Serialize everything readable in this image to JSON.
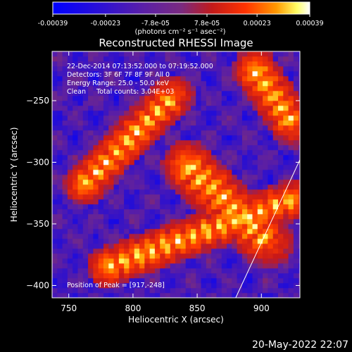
{
  "chart_data": {
    "type": "heatmap",
    "title": "Reconstructed RHESSI Image",
    "xlabel": "Heliocentric X (arcsec)",
    "ylabel": "Heliocentric Y (arcsec)",
    "xlim": [
      737,
      930
    ],
    "ylim": [
      -410,
      -210
    ],
    "x_ticks": [
      750,
      800,
      850,
      900
    ],
    "y_ticks": [
      -250,
      -300,
      -350,
      -400
    ],
    "colorbar": {
      "range": [
        -0.00039,
        0.00039
      ],
      "tick_values": [
        -0.00039,
        -0.00023,
        -7.8e-05,
        7.8e-05,
        0.00023,
        0.00039
      ],
      "tick_labels": [
        "-0.00039",
        "-0.00023",
        "-7.8e-05",
        "7.8e-05",
        "0.00023",
        "0.00039"
      ],
      "unit_label": "(photons cm⁻² s⁻¹ asec⁻²)",
      "colormap": [
        "#0000ff",
        "#3300cc",
        "#661aa0",
        "#8a2e6e",
        "#c81e1e",
        "#ff4000",
        "#ff9900",
        "#ffff66",
        "#ffffff"
      ]
    },
    "annotations": [
      "22-Dec-2014 07:13:52.000 to 07:19:52.000",
      "Detectors: 3F 6F 7F 8F 9F All 0",
      "Energy Range: 25.0 - 50.0 keV",
      "Clean     Total counts: 3.04E+03"
    ],
    "peak_label": "Position of Peak = [917,-248]",
    "peak": [
      917,
      -248
    ],
    "bright_bands": [
      {
        "name": "",
        "start": [
          762,
          -318
        ],
        "end": [
          832,
          -245
        ],
        "width_arcsec": 24
      },
      {
        "name": "",
        "start": [
          843,
          -303
        ],
        "end": [
          905,
          -365
        ],
        "width_arcsec": 30
      },
      {
        "name": "",
        "start": [
          780,
          -385
        ],
        "end": [
          925,
          -330
        ],
        "width_arcsec": 24
      },
      {
        "name": "",
        "start": [
          895,
          -225
        ],
        "end": [
          925,
          -270
        ],
        "width_arcsec": 26
      }
    ],
    "limb_line": [
      [
        880,
        -410
      ],
      [
        930,
        -298
      ]
    ],
    "grid": false
  },
  "timestamp": "20-May-2022 22:07"
}
